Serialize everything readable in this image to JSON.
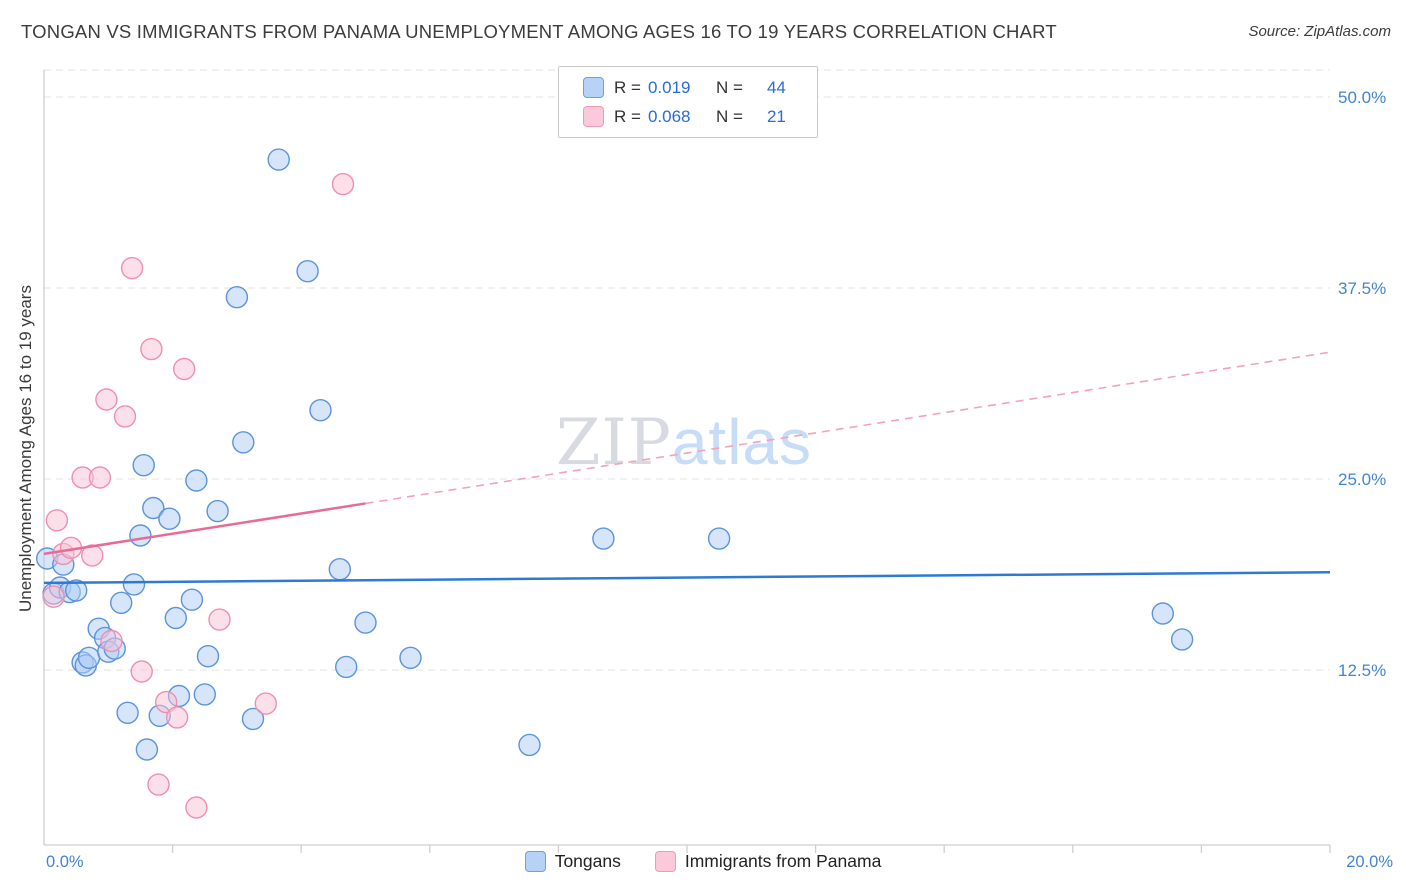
{
  "header": {
    "title": "TONGAN VS IMMIGRANTS FROM PANAMA UNEMPLOYMENT AMONG AGES 16 TO 19 YEARS CORRELATION CHART",
    "source": "Source: ZipAtlas.com"
  },
  "legend_box": {
    "rows": [
      {
        "series": "Tongans",
        "r_label": "R =",
        "r_value": "0.019",
        "n_label": "N =",
        "n_value": "44"
      },
      {
        "series": "Immigrants from Panama",
        "r_label": "R =",
        "r_value": "0.068",
        "n_label": "N =",
        "n_value": "21"
      }
    ]
  },
  "axes": {
    "y_label": "Unemployment Among Ages 16 to 19 years",
    "x_min_label": "0.0%",
    "x_max_label": "20.0%"
  },
  "bottom_legend": {
    "items": [
      {
        "label": "Tongans"
      },
      {
        "label": "Immigrants from Panama"
      }
    ]
  },
  "watermark": {
    "part1": "ZIP",
    "part2": "atlas"
  },
  "colors": {
    "blue_fill": "#aecbf5",
    "blue_stroke": "#5b93dd",
    "pink_fill": "#f9c2d4",
    "pink_stroke": "#ee8fae",
    "blue_trend": "#2e7ad2",
    "pink_trend": "#e96a93",
    "pink_trend_dashed": "#f2a3bb",
    "tick_label": "#4285d4",
    "grid": "#e3e3e3",
    "axis": "#cfcfcf"
  },
  "chart_data": {
    "type": "scatter",
    "title": "TONGAN VS IMMIGRANTS FROM PANAMA UNEMPLOYMENT AMONG AGES 16 TO 19 YEARS CORRELATION CHART",
    "xlabel": "",
    "ylabel": "Unemployment Among Ages 16 to 19 years",
    "xlim": [
      0,
      20
    ],
    "ylim": [
      0,
      52
    ],
    "grid": "horizontal-dashed",
    "legend_position": "bottom-center",
    "x_ticks": [
      {
        "value": 0,
        "label": "0.0%"
      },
      {
        "value": 20,
        "label": "20.0%"
      }
    ],
    "y_ticks": [
      {
        "value": 12.5,
        "label": "12.5%"
      },
      {
        "value": 25,
        "label": "25.0%"
      },
      {
        "value": 37.5,
        "label": "37.5%"
      },
      {
        "value": 50,
        "label": "50.0%"
      }
    ],
    "series": [
      {
        "name": "Tongans",
        "r": 0.019,
        "n": 44,
        "points": [
          [
            0.05,
            19.8
          ],
          [
            0.15,
            17.5
          ],
          [
            0.25,
            17.9
          ],
          [
            0.3,
            19.4
          ],
          [
            0.4,
            17.6
          ],
          [
            0.5,
            17.7
          ],
          [
            0.6,
            13.0
          ],
          [
            0.65,
            12.8
          ],
          [
            0.7,
            13.3
          ],
          [
            0.85,
            15.2
          ],
          [
            0.95,
            14.6
          ],
          [
            1.0,
            13.7
          ],
          [
            1.1,
            13.9
          ],
          [
            1.2,
            16.9
          ],
          [
            1.3,
            9.7
          ],
          [
            1.4,
            18.1
          ],
          [
            1.5,
            21.3
          ],
          [
            1.55,
            25.9
          ],
          [
            1.6,
            7.3
          ],
          [
            1.7,
            23.1
          ],
          [
            1.8,
            9.5
          ],
          [
            1.95,
            22.4
          ],
          [
            2.05,
            15.9
          ],
          [
            2.1,
            10.8
          ],
          [
            2.3,
            17.1
          ],
          [
            2.37,
            24.9
          ],
          [
            2.5,
            10.9
          ],
          [
            2.55,
            13.4
          ],
          [
            2.7,
            22.9
          ],
          [
            3.0,
            36.9
          ],
          [
            3.1,
            27.4
          ],
          [
            3.25,
            9.3
          ],
          [
            3.65,
            45.9
          ],
          [
            4.1,
            38.6
          ],
          [
            4.3,
            29.5
          ],
          [
            4.6,
            19.1
          ],
          [
            4.7,
            12.7
          ],
          [
            5.0,
            15.6
          ],
          [
            5.7,
            13.3
          ],
          [
            7.55,
            7.6
          ],
          [
            8.7,
            21.1
          ],
          [
            10.5,
            21.1
          ],
          [
            17.4,
            16.2
          ],
          [
            17.7,
            14.5
          ]
        ]
      },
      {
        "name": "Immigrants from Panama",
        "r": 0.068,
        "n": 21,
        "points": [
          [
            0.15,
            17.3
          ],
          [
            0.2,
            22.3
          ],
          [
            0.3,
            20.1
          ],
          [
            0.42,
            20.5
          ],
          [
            0.6,
            25.1
          ],
          [
            0.75,
            20.0
          ],
          [
            0.87,
            25.1
          ],
          [
            0.97,
            30.2
          ],
          [
            1.05,
            14.4
          ],
          [
            1.26,
            29.1
          ],
          [
            1.37,
            38.8
          ],
          [
            1.52,
            12.4
          ],
          [
            1.67,
            33.5
          ],
          [
            1.78,
            5.0
          ],
          [
            1.9,
            10.4
          ],
          [
            2.07,
            9.4
          ],
          [
            2.18,
            32.2
          ],
          [
            2.37,
            3.5
          ],
          [
            2.73,
            15.8
          ],
          [
            3.45,
            10.3
          ],
          [
            4.65,
            44.3
          ]
        ]
      }
    ],
    "trendlines": [
      {
        "series": "Tongans",
        "x0": 0,
        "y0": 18.2,
        "x1": 20,
        "y1": 18.9
      },
      {
        "series": "Immigrants from Panama",
        "x0": 0,
        "y0": 20.1,
        "x1": 20,
        "y1": 33.3,
        "dash_from_x": 5
      }
    ]
  }
}
